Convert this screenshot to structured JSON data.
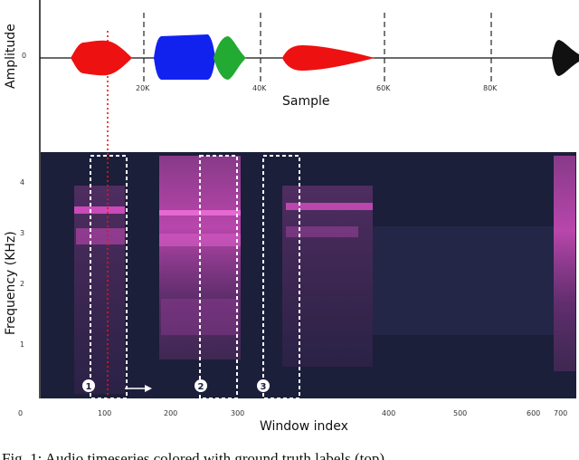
{
  "figure": {
    "waveform": {
      "ylabel": "Amplitude",
      "xlabel": "Sample",
      "y_tick_zero": "0",
      "x_ticks": [
        "20K",
        "40K",
        "60K",
        "80K"
      ],
      "colors": {
        "label_a": "#ee1111",
        "label_b": "#1122ee",
        "label_c": "#22aa33",
        "unlabeled": "#111111"
      }
    },
    "spectrogram": {
      "ylabel": "Frequency (KHz)",
      "xlabel": "Window index",
      "y_ticks": [
        "1",
        "2",
        "3",
        "4"
      ],
      "x_ticks": [
        "0",
        "100",
        "200",
        "300",
        "400",
        "500",
        "600",
        "700"
      ],
      "window_markers": [
        "1",
        "2",
        "3"
      ],
      "background": "#1b1f3a",
      "highlight": "#e050c8"
    },
    "caption": "Fig. 1: Audio timeseries colored with ground truth labels (top)"
  }
}
